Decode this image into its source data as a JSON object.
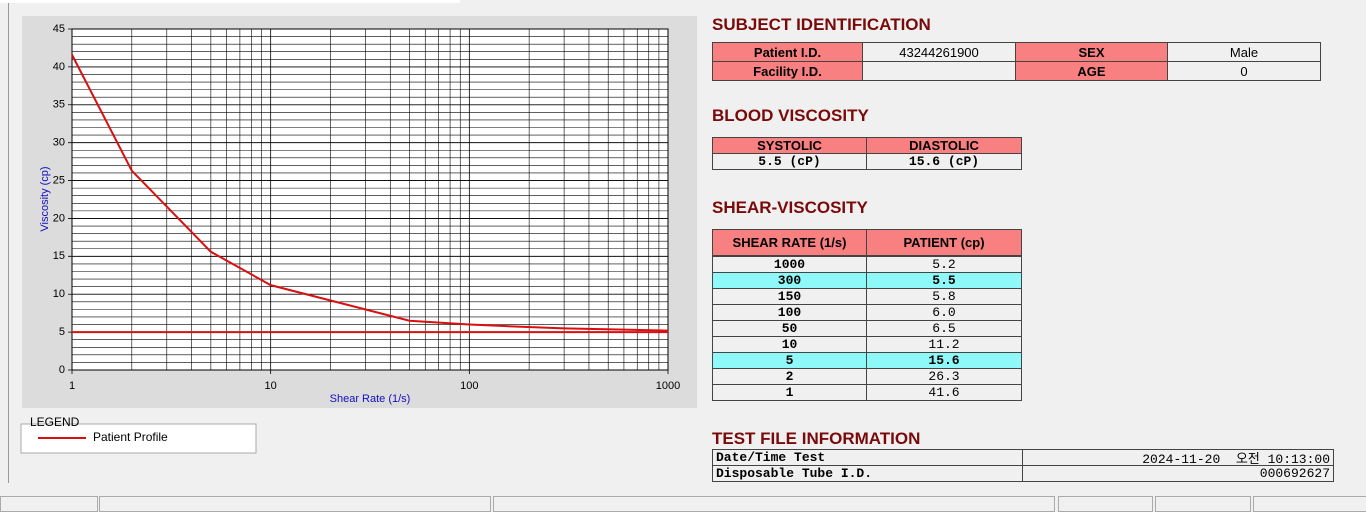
{
  "chart_data": {
    "type": "line",
    "xlabel": "Shear Rate (1/s)",
    "ylabel": "Viscosity (cp)",
    "x": [
      1,
      2,
      5,
      10,
      50,
      100,
      150,
      300,
      1000
    ],
    "series": [
      {
        "name": "Patient Profile",
        "color": "#d81010",
        "values": [
          41.6,
          26.3,
          15.6,
          11.2,
          6.5,
          6.0,
          5.8,
          5.5,
          5.2
        ]
      }
    ],
    "hlines": [
      5
    ],
    "xlim": [
      1,
      1000
    ],
    "xticks": [
      1,
      10,
      100,
      1000
    ],
    "log_x": true,
    "ylim": [
      0,
      45
    ],
    "yticks": [
      0,
      5,
      10,
      15,
      20,
      25,
      30,
      35,
      40,
      45
    ],
    "grid": true,
    "legend_title": "LEGEND"
  },
  "subject": {
    "title": "SUBJECT IDENTIFICATION",
    "rows": [
      [
        "Patient I.D.",
        "43244261900",
        "SEX",
        "Male"
      ],
      [
        "Facility I.D.",
        null,
        "AGE",
        "0"
      ]
    ]
  },
  "blood": {
    "title": "BLOOD VISCOSITY",
    "rows": [
      [
        "SYSTOLIC",
        "DIASTOLIC"
      ],
      [
        "5.5 (cP)",
        "15.6 (cP)"
      ]
    ]
  },
  "shear": {
    "title": "SHEAR-VISCOSITY",
    "header": [
      "SHEAR RATE (1/s)",
      "PATIENT (cp)"
    ],
    "rows": [
      [
        "1000",
        "5.2"
      ],
      [
        "300",
        "5.5"
      ],
      [
        "150",
        "5.8"
      ],
      [
        "100",
        "6.0"
      ],
      [
        "50",
        "6.5"
      ],
      [
        "10",
        "11.2"
      ],
      [
        "5",
        "15.6"
      ],
      [
        "2",
        "26.3"
      ],
      [
        "1",
        "41.6"
      ]
    ],
    "highlighted_rows": [
      1,
      6
    ]
  },
  "test": {
    "title": "TEST FILE INFORMATION",
    "rows": [
      [
        "Date/Time Test",
        "2024-11-20  오전 10:13:00"
      ],
      [
        "Disposable Tube I.D.",
        "000692627"
      ]
    ]
  }
}
